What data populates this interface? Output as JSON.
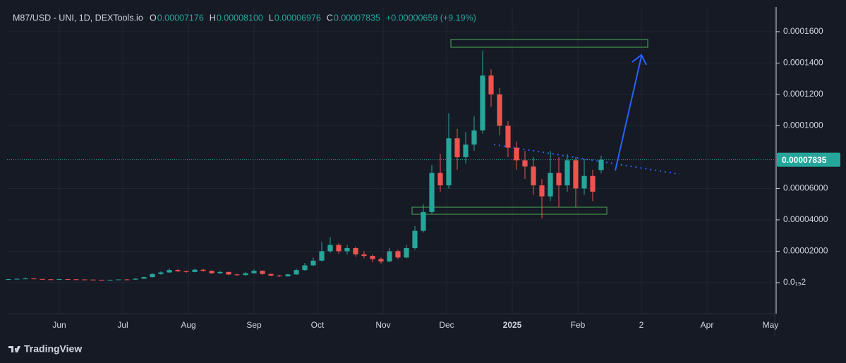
{
  "chart_data": {
    "type": "candlestick",
    "title": "M87/USD - UNI, 1D, DEXTools.io",
    "ohlc_legend": [
      {
        "key": "O",
        "value": "0.00007176"
      },
      {
        "key": "H",
        "value": "0.00008100"
      },
      {
        "key": "L",
        "value": "0.00006976"
      },
      {
        "key": "C",
        "value": "0.00007835"
      }
    ],
    "change": "+0.00000659 (+9.19%)",
    "up_color": "#26a69a",
    "down_color": "#ef5350",
    "x": [
      -24,
      -20,
      -16,
      -12,
      -8,
      -4,
      0,
      4,
      8,
      12,
      16,
      20,
      24,
      28,
      32,
      36,
      40,
      44,
      48,
      52,
      56,
      60,
      64,
      68,
      72,
      76,
      80,
      84,
      88,
      92,
      96,
      100,
      104,
      108,
      112,
      116,
      120,
      124,
      128,
      132,
      136,
      140,
      144,
      148,
      152,
      156,
      160,
      164,
      168,
      172,
      176,
      180,
      184,
      188,
      192,
      196,
      200,
      204,
      208,
      212,
      216,
      220,
      224,
      228,
      232,
      236,
      240,
      244,
      248,
      252,
      256
    ],
    "open": [
      2.1e-06,
      2.2e-06,
      2.4e-06,
      2.6e-06,
      2.3e-06,
      2.1e-06,
      2e-06,
      2.2e-06,
      2.1e-06,
      2e-06,
      1.9e-06,
      1.8e-06,
      1.7e-06,
      1.8e-06,
      2e-06,
      1.9e-06,
      2.5e-06,
      3.5e-06,
      5.5e-06,
      6.5e-06,
      8e-06,
      7.2e-06,
      6.8e-06,
      8.2e-06,
      7.5e-06,
      6e-06,
      6.8e-06,
      5.2e-06,
      4.8e-06,
      6e-06,
      7.5e-06,
      5.5e-06,
      4.5e-06,
      4e-06,
      5.2e-06,
      8e-06,
      1.1e-05,
      1.4e-05,
      2e-05,
      2.4e-05,
      2e-05,
      2.2e-05,
      1.8e-05,
      1.7e-05,
      1.5e-05,
      1.35e-05,
      2e-05,
      1.6e-05,
      2.2e-05,
      3.3e-05,
      4.5e-05,
      7e-05,
      6.2e-05,
      9.2e-05,
      8e-05,
      8.8e-05,
      9.7e-05,
      0.000132,
      0.00012,
      0.0001,
      8.6e-05,
      7.8e-05,
      7.4e-05,
      6.2e-05,
      5.5e-05,
      7e-05,
      6.2e-05,
      7.8e-05,
      6e-05,
      6.8e-05,
      7.176e-05
    ],
    "high": [
      2.4e-06,
      2.6e-06,
      3.4e-06,
      2.7e-06,
      2.4e-06,
      2.3e-06,
      2.4e-06,
      2.3e-06,
      2.2e-06,
      2.1e-06,
      2e-06,
      1.9e-06,
      1.9e-06,
      2.1e-06,
      2.2e-06,
      2.7e-06,
      3.8e-06,
      6e-06,
      7.2e-06,
      9e-06,
      8.6e-06,
      7.8e-06,
      9e-06,
      8.8e-06,
      7.8e-06,
      7.4e-06,
      7e-06,
      5.6e-06,
      6.6e-06,
      8.4e-06,
      7.8e-06,
      5.8e-06,
      4.9e-06,
      5.6e-06,
      8.8e-06,
      1.25e-05,
      1.6e-05,
      2.6e-05,
      2.9e-05,
      2.5e-05,
      2.4e-05,
      2.3e-05,
      2e-05,
      1.8e-05,
      1.6e-05,
      2.2e-05,
      2.1e-05,
      2.4e-05,
      3.6e-05,
      5e-05,
      7.5e-05,
      8.2e-05,
      0.000108,
      9.8e-05,
      9.6e-05,
      0.000106,
      0.000148,
      0.000136,
      0.000124,
      0.000103,
      9e-05,
      8.4e-05,
      8e-05,
      6.6e-05,
      8.4e-05,
      8e-05,
      8.2e-05,
      8e-05,
      7.9e-05,
      7.2e-05,
      8.1e-05
    ],
    "low": [
      2e-06,
      2.1e-06,
      2.3e-06,
      2.2e-06,
      2e-06,
      1.9e-06,
      1.9e-06,
      2e-06,
      1.9e-06,
      1.8e-06,
      1.7e-06,
      1.6e-06,
      1.6e-06,
      1.7e-06,
      1.8e-06,
      1.8e-06,
      2.4e-06,
      3.3e-06,
      5e-06,
      6e-06,
      6.8e-06,
      6.2e-06,
      6.5e-06,
      7e-06,
      5.6e-06,
      5.6e-06,
      4.8e-06,
      4.4e-06,
      4.5e-06,
      5.8e-06,
      5e-06,
      4e-06,
      3.6e-06,
      3.8e-06,
      5e-06,
      7.6e-06,
      1.05e-05,
      1.35e-05,
      1.9e-05,
      1.85e-05,
      1.8e-05,
      1.65e-05,
      1.55e-05,
      1.3e-05,
      1.2e-05,
      1.3e-05,
      1.5e-05,
      1.55e-05,
      2.1e-05,
      3.2e-05,
      4.4e-05,
      5.8e-05,
      6e-05,
      7.2e-05,
      7.6e-05,
      8.4e-05,
      9.5e-05,
      0.000112,
      9.4e-05,
      8e-05,
      7.2e-05,
      6.6e-05,
      5.6e-05,
      4.1e-05,
      5.2e-05,
      4.8e-05,
      5.8e-05,
      4.8e-05,
      5.6e-05,
      5.2e-05,
      6.976e-05
    ],
    "close": [
      2.2e-06,
      2.4e-06,
      2.6e-06,
      2.3e-06,
      2.1e-06,
      2e-06,
      2.2e-06,
      2.1e-06,
      2e-06,
      1.9e-06,
      1.8e-06,
      1.7e-06,
      1.8e-06,
      2e-06,
      1.9e-06,
      2.5e-06,
      3.5e-06,
      5.5e-06,
      6.5e-06,
      8e-06,
      7.2e-06,
      6.8e-06,
      8.2e-06,
      7.5e-06,
      6e-06,
      6.8e-06,
      5.2e-06,
      4.8e-06,
      6e-06,
      7.5e-06,
      5.5e-06,
      4.5e-06,
      4e-06,
      5.2e-06,
      8e-06,
      1.1e-05,
      1.4e-05,
      2e-05,
      2.4e-05,
      2e-05,
      2.2e-05,
      1.8e-05,
      1.7e-05,
      1.5e-05,
      1.35e-05,
      2e-05,
      1.6e-05,
      2.2e-05,
      3.3e-05,
      4.5e-05,
      7e-05,
      6.2e-05,
      9.2e-05,
      8e-05,
      8.8e-05,
      9.7e-05,
      0.000132,
      0.00012,
      0.0001,
      8.6e-05,
      7.8e-05,
      7.4e-05,
      6.2e-05,
      5.5e-05,
      7e-05,
      6.2e-05,
      7.8e-05,
      6e-05,
      6.8e-05,
      5.8e-05,
      7.835e-05
    ],
    "last_price": {
      "value": 7.835e-05,
      "label": "0.00007835"
    },
    "xlim": [
      -24.67,
      338
    ],
    "ylim": [
      -1.98e-05,
      0.0001757
    ],
    "xticks": [
      {
        "value": 0,
        "label": "Jun"
      },
      {
        "value": 30,
        "label": "Jul"
      },
      {
        "value": 61,
        "label": "Aug"
      },
      {
        "value": 92,
        "label": "Sep"
      },
      {
        "value": 122,
        "label": "Oct"
      },
      {
        "value": 153,
        "label": "Nov"
      },
      {
        "value": 183,
        "label": "Dec"
      },
      {
        "value": 214,
        "label": "2025"
      },
      {
        "value": 245,
        "label": "Feb"
      },
      {
        "value": 275,
        "label": "2"
      },
      {
        "value": 306,
        "label": "Apr"
      },
      {
        "value": 336,
        "label": "May"
      }
    ],
    "yticks": [
      {
        "value": 2e-20,
        "label": "0.0₁₉2"
      },
      {
        "value": 2e-05,
        "label": "0.00002000"
      },
      {
        "value": 4e-05,
        "label": "0.00004000"
      },
      {
        "value": 6e-05,
        "label": "0.00006000"
      },
      {
        "value": 0.0001,
        "label": "0.0001000"
      },
      {
        "value": 0.00012,
        "label": "0.0001200"
      },
      {
        "value": 0.00014,
        "label": "0.0001400"
      },
      {
        "value": 0.00016,
        "label": "0.0001600"
      }
    ],
    "grid": true,
    "watermark": "TradingView"
  }
}
